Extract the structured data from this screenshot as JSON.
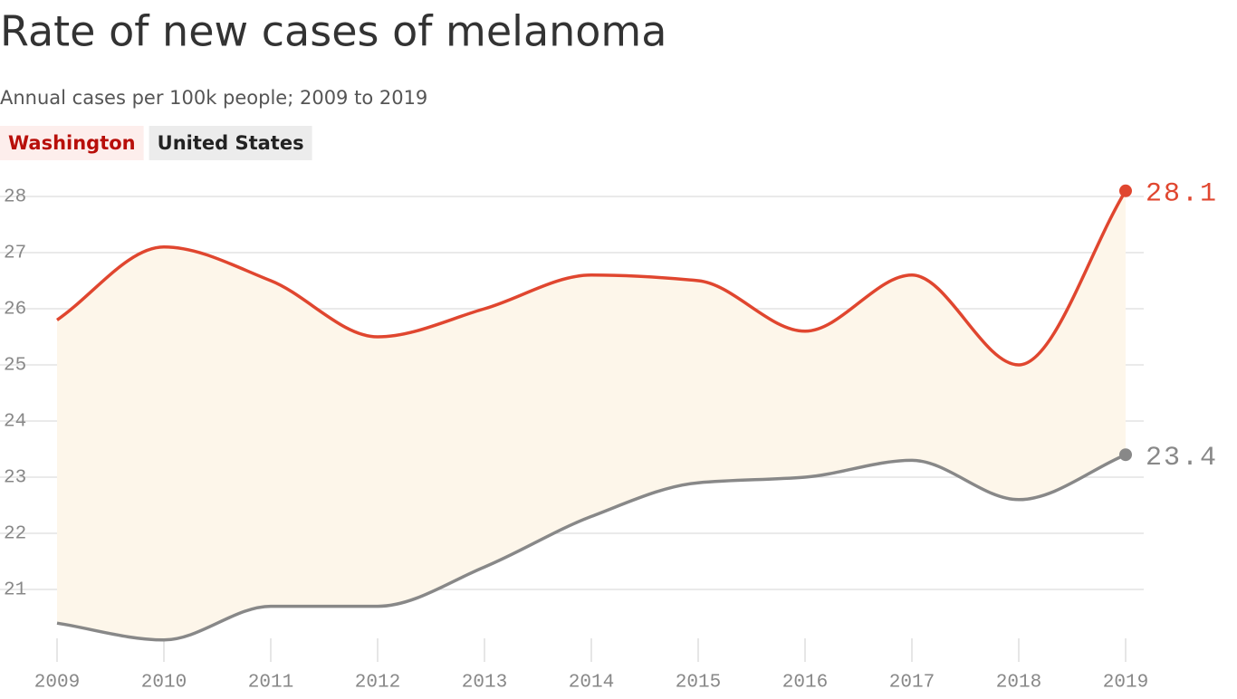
{
  "chart_data": {
    "type": "line",
    "title": "Rate of new cases of melanoma",
    "subtitle": "Annual cases per 100k people; 2009 to 2019",
    "x": [
      2009,
      2010,
      2011,
      2012,
      2013,
      2014,
      2015,
      2016,
      2017,
      2018,
      2019
    ],
    "series": [
      {
        "name": "Washington",
        "color": "#e0462f",
        "values": [
          25.8,
          27.1,
          26.5,
          25.5,
          26.0,
          26.6,
          26.5,
          25.6,
          26.6,
          25.0,
          28.1
        ]
      },
      {
        "name": "United States",
        "color": "#888888",
        "values": [
          20.4,
          20.1,
          20.7,
          20.7,
          21.4,
          22.3,
          22.9,
          23.0,
          23.3,
          22.6,
          23.4
        ]
      }
    ],
    "xlim": [
      2009,
      2019
    ],
    "xticks": [
      2009,
      2010,
      2011,
      2012,
      2013,
      2014,
      2015,
      2016,
      2017,
      2018,
      2019
    ],
    "ylim": [
      20,
      28.2
    ],
    "yticks": [
      21,
      22,
      23,
      24,
      25,
      26,
      27,
      28
    ],
    "grid": true,
    "fill_between": true
  }
}
